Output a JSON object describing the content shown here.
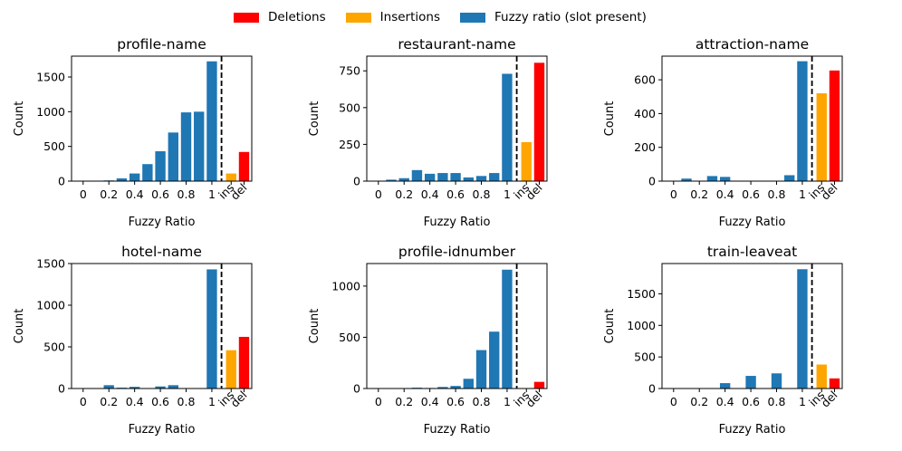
{
  "legend": [
    {
      "label": "Deletions",
      "color": "#ff0000"
    },
    {
      "label": "Insertions",
      "color": "#ffa500"
    },
    {
      "label": "Fuzzy ratio (slot present)",
      "color": "#1f77b4"
    }
  ],
  "colors": {
    "fuzzy": "#1f77b4",
    "ins": "#ffa500",
    "del": "#ff0000"
  },
  "chart_data": [
    {
      "type": "bar",
      "title": "profile-name",
      "xlabel": "Fuzzy Ratio",
      "ylabel": "Count",
      "ylim": [
        0,
        1800
      ],
      "yticks": [
        0,
        500,
        1000,
        1500
      ],
      "x_tick_labels": [
        "0",
        "0.2",
        "0.4",
        "0.6",
        "0.8",
        "1"
      ],
      "extra_categories": [
        "ins",
        "del"
      ],
      "fuzzy_x": [
        0,
        0.1,
        0.2,
        0.3,
        0.4,
        0.5,
        0.6,
        0.7,
        0.8,
        0.9,
        1.0
      ],
      "fuzzy_values": [
        0,
        5,
        10,
        40,
        110,
        245,
        430,
        700,
        990,
        1000,
        1725
      ],
      "insertions": 110,
      "deletions": 420
    },
    {
      "type": "bar",
      "title": "restaurant-name",
      "xlabel": "Fuzzy Ratio",
      "ylabel": "Count",
      "ylim": [
        0,
        850
      ],
      "yticks": [
        0,
        250,
        500,
        750
      ],
      "x_tick_labels": [
        "0",
        "0.2",
        "0.4",
        "0.6",
        "0.8",
        "1"
      ],
      "extra_categories": [
        "ins",
        "del"
      ],
      "fuzzy_x": [
        0,
        0.1,
        0.2,
        0.3,
        0.4,
        0.5,
        0.6,
        0.7,
        0.8,
        0.9,
        1.0
      ],
      "fuzzy_values": [
        0,
        10,
        20,
        75,
        50,
        55,
        55,
        25,
        35,
        55,
        730
      ],
      "insertions": 265,
      "deletions": 805
    },
    {
      "type": "bar",
      "title": "attraction-name",
      "xlabel": "Fuzzy Ratio",
      "ylabel": "Count",
      "ylim": [
        0,
        740
      ],
      "yticks": [
        0,
        200,
        400,
        600
      ],
      "x_tick_labels": [
        "0",
        "0.2",
        "0.4",
        "0.6",
        "0.8",
        "1"
      ],
      "extra_categories": [
        "ins",
        "del"
      ],
      "fuzzy_x": [
        0,
        0.1,
        0.2,
        0.3,
        0.4,
        0.5,
        0.6,
        0.7,
        0.8,
        0.9,
        1.0
      ],
      "fuzzy_values": [
        0,
        15,
        0,
        30,
        25,
        0,
        0,
        0,
        0,
        35,
        710
      ],
      "insertions": 520,
      "deletions": 655
    },
    {
      "type": "bar",
      "title": "hotel-name",
      "xlabel": "Fuzzy Ratio",
      "ylabel": "Count",
      "ylim": [
        0,
        1500
      ],
      "yticks": [
        0,
        500,
        1000,
        1500
      ],
      "x_tick_labels": [
        "0",
        "0.2",
        "0.4",
        "0.6",
        "0.8",
        "1"
      ],
      "extra_categories": [
        "ins",
        "del"
      ],
      "fuzzy_x": [
        0,
        0.1,
        0.2,
        0.3,
        0.4,
        0.5,
        0.6,
        0.7,
        0.8,
        0.9,
        1.0
      ],
      "fuzzy_values": [
        0,
        0,
        40,
        10,
        20,
        0,
        25,
        40,
        0,
        0,
        1430
      ],
      "insertions": 460,
      "deletions": 620
    },
    {
      "type": "bar",
      "title": "profile-idnumber",
      "xlabel": "Fuzzy Ratio",
      "ylabel": "Count",
      "ylim": [
        0,
        1220
      ],
      "yticks": [
        0,
        500,
        1000
      ],
      "x_tick_labels": [
        "0",
        "0.2",
        "0.4",
        "0.6",
        "0.8",
        "1"
      ],
      "extra_categories": [
        "ins",
        "del"
      ],
      "fuzzy_x": [
        0,
        0.1,
        0.2,
        0.3,
        0.4,
        0.5,
        0.6,
        0.7,
        0.8,
        0.9,
        1.0
      ],
      "fuzzy_values": [
        0,
        0,
        0,
        8,
        5,
        15,
        25,
        95,
        375,
        555,
        1160
      ],
      "insertions": 0,
      "deletions": 65
    },
    {
      "type": "bar",
      "title": "train-leaveat",
      "xlabel": "Fuzzy Ratio",
      "ylabel": "Count",
      "ylim": [
        0,
        1980
      ],
      "yticks": [
        0,
        500,
        1000,
        1500
      ],
      "x_tick_labels": [
        "0",
        "0.2",
        "0.4",
        "0.6",
        "0.8",
        "1"
      ],
      "extra_categories": [
        "ins",
        "del"
      ],
      "fuzzy_x": [
        0,
        0.1,
        0.2,
        0.3,
        0.4,
        0.5,
        0.6,
        0.7,
        0.8,
        0.9,
        1.0
      ],
      "fuzzy_values": [
        0,
        5,
        5,
        0,
        85,
        0,
        200,
        0,
        240,
        0,
        1890
      ],
      "insertions": 380,
      "deletions": 160
    }
  ]
}
